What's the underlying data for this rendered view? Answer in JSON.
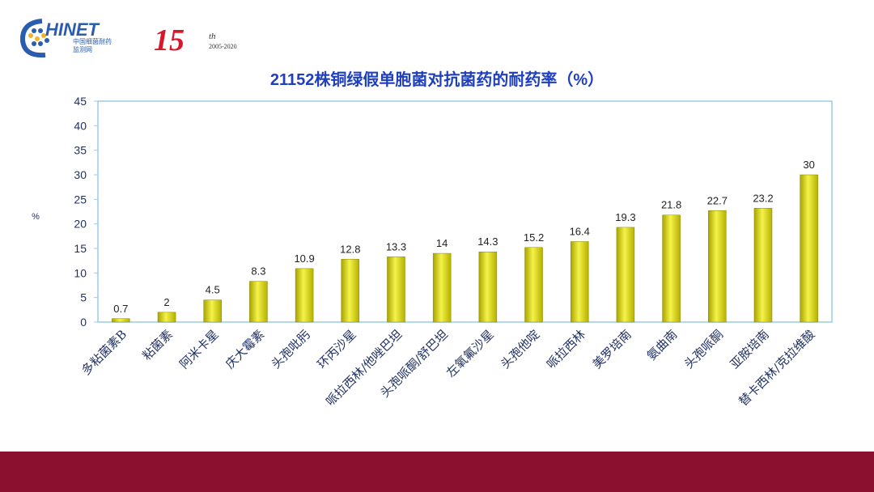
{
  "logo": {
    "brand": "CHINET",
    "subtitle_cn": "中国细菌耐药",
    "subtitle_cn2": "监测网",
    "anniversary": "15",
    "anniversary_suffix": "th",
    "years": "2005-2020"
  },
  "colors": {
    "bar": "#d9d400",
    "bar_highlight": "#f5f34a",
    "title": "#1f3fbf",
    "axis_text": "#1f2f5f",
    "plot_border": "#9ccbe8",
    "footer": "#8b0f2f"
  },
  "chart_data": {
    "type": "bar",
    "title": "21152株铜绿假单胞菌对抗菌药的耐药率（%）",
    "ylabel": "%",
    "xlabel": "",
    "ylim": [
      0,
      45
    ],
    "yticks": [
      0,
      5,
      10,
      15,
      20,
      25,
      30,
      35,
      40,
      45
    ],
    "grid": false,
    "categories": [
      "多粘菌素B",
      "粘菌素",
      "阿米卡星",
      "庆大霉素",
      "头孢吡肟",
      "环丙沙星",
      "哌拉西林/他唑巴坦",
      "头孢哌酮/舒巴坦",
      "左氧氟沙星",
      "头孢他啶",
      "哌拉西林",
      "美罗培南",
      "氨曲南",
      "头孢哌酮",
      "亚胺培南",
      "替卡西林/克拉维酸"
    ],
    "values": [
      0.7,
      2,
      4.5,
      8.3,
      10.9,
      12.8,
      13.3,
      14,
      14.3,
      15.2,
      16.4,
      19.3,
      21.8,
      22.7,
      23.2,
      30
    ],
    "data_labels": [
      "0.7",
      "2",
      "4.5",
      "8.3",
      "10.9",
      "12.8",
      "13.3",
      "14",
      "14.3",
      "15.2",
      "16.4",
      "19.3",
      "21.8",
      "22.7",
      "23.2",
      "30"
    ]
  }
}
